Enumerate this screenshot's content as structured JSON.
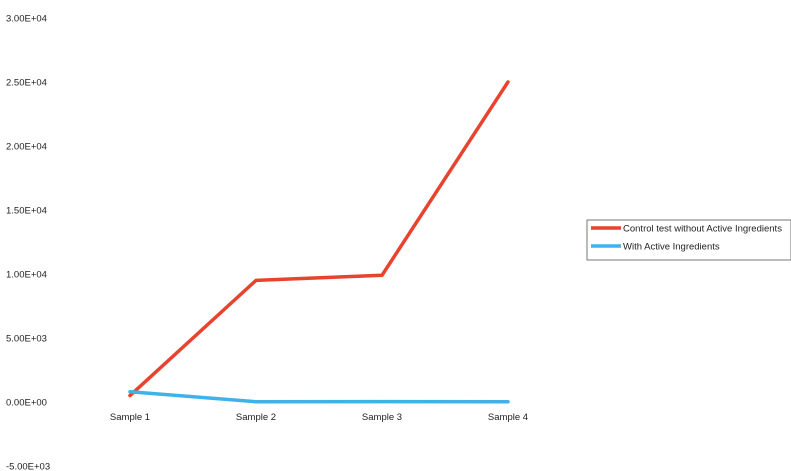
{
  "chart_data": {
    "type": "line",
    "categories": [
      "Sample 1",
      "Sample 2",
      "Sample 3",
      "Sample 4"
    ],
    "series": [
      {
        "name": "Control test without Active Ingredients",
        "color": "#e8432e",
        "values": [
          500,
          9500,
          9900,
          25000
        ]
      },
      {
        "name": "With Active Ingredients",
        "color": "#3fb2ea",
        "values": [
          800,
          20,
          30,
          20
        ]
      }
    ],
    "ylim": [
      -5000,
      30000
    ],
    "yticks": [
      -5000,
      0,
      5000,
      10000,
      15000,
      20000,
      25000,
      30000
    ],
    "ytick_labels": [
      "-5.00E+03",
      "0.00E+00",
      "5.00E+03",
      "1.00E+04",
      "1.50E+04",
      "2.00E+04",
      "2.50E+04",
      "3.00E+04"
    ],
    "grid": false,
    "legend_position": "right"
  }
}
